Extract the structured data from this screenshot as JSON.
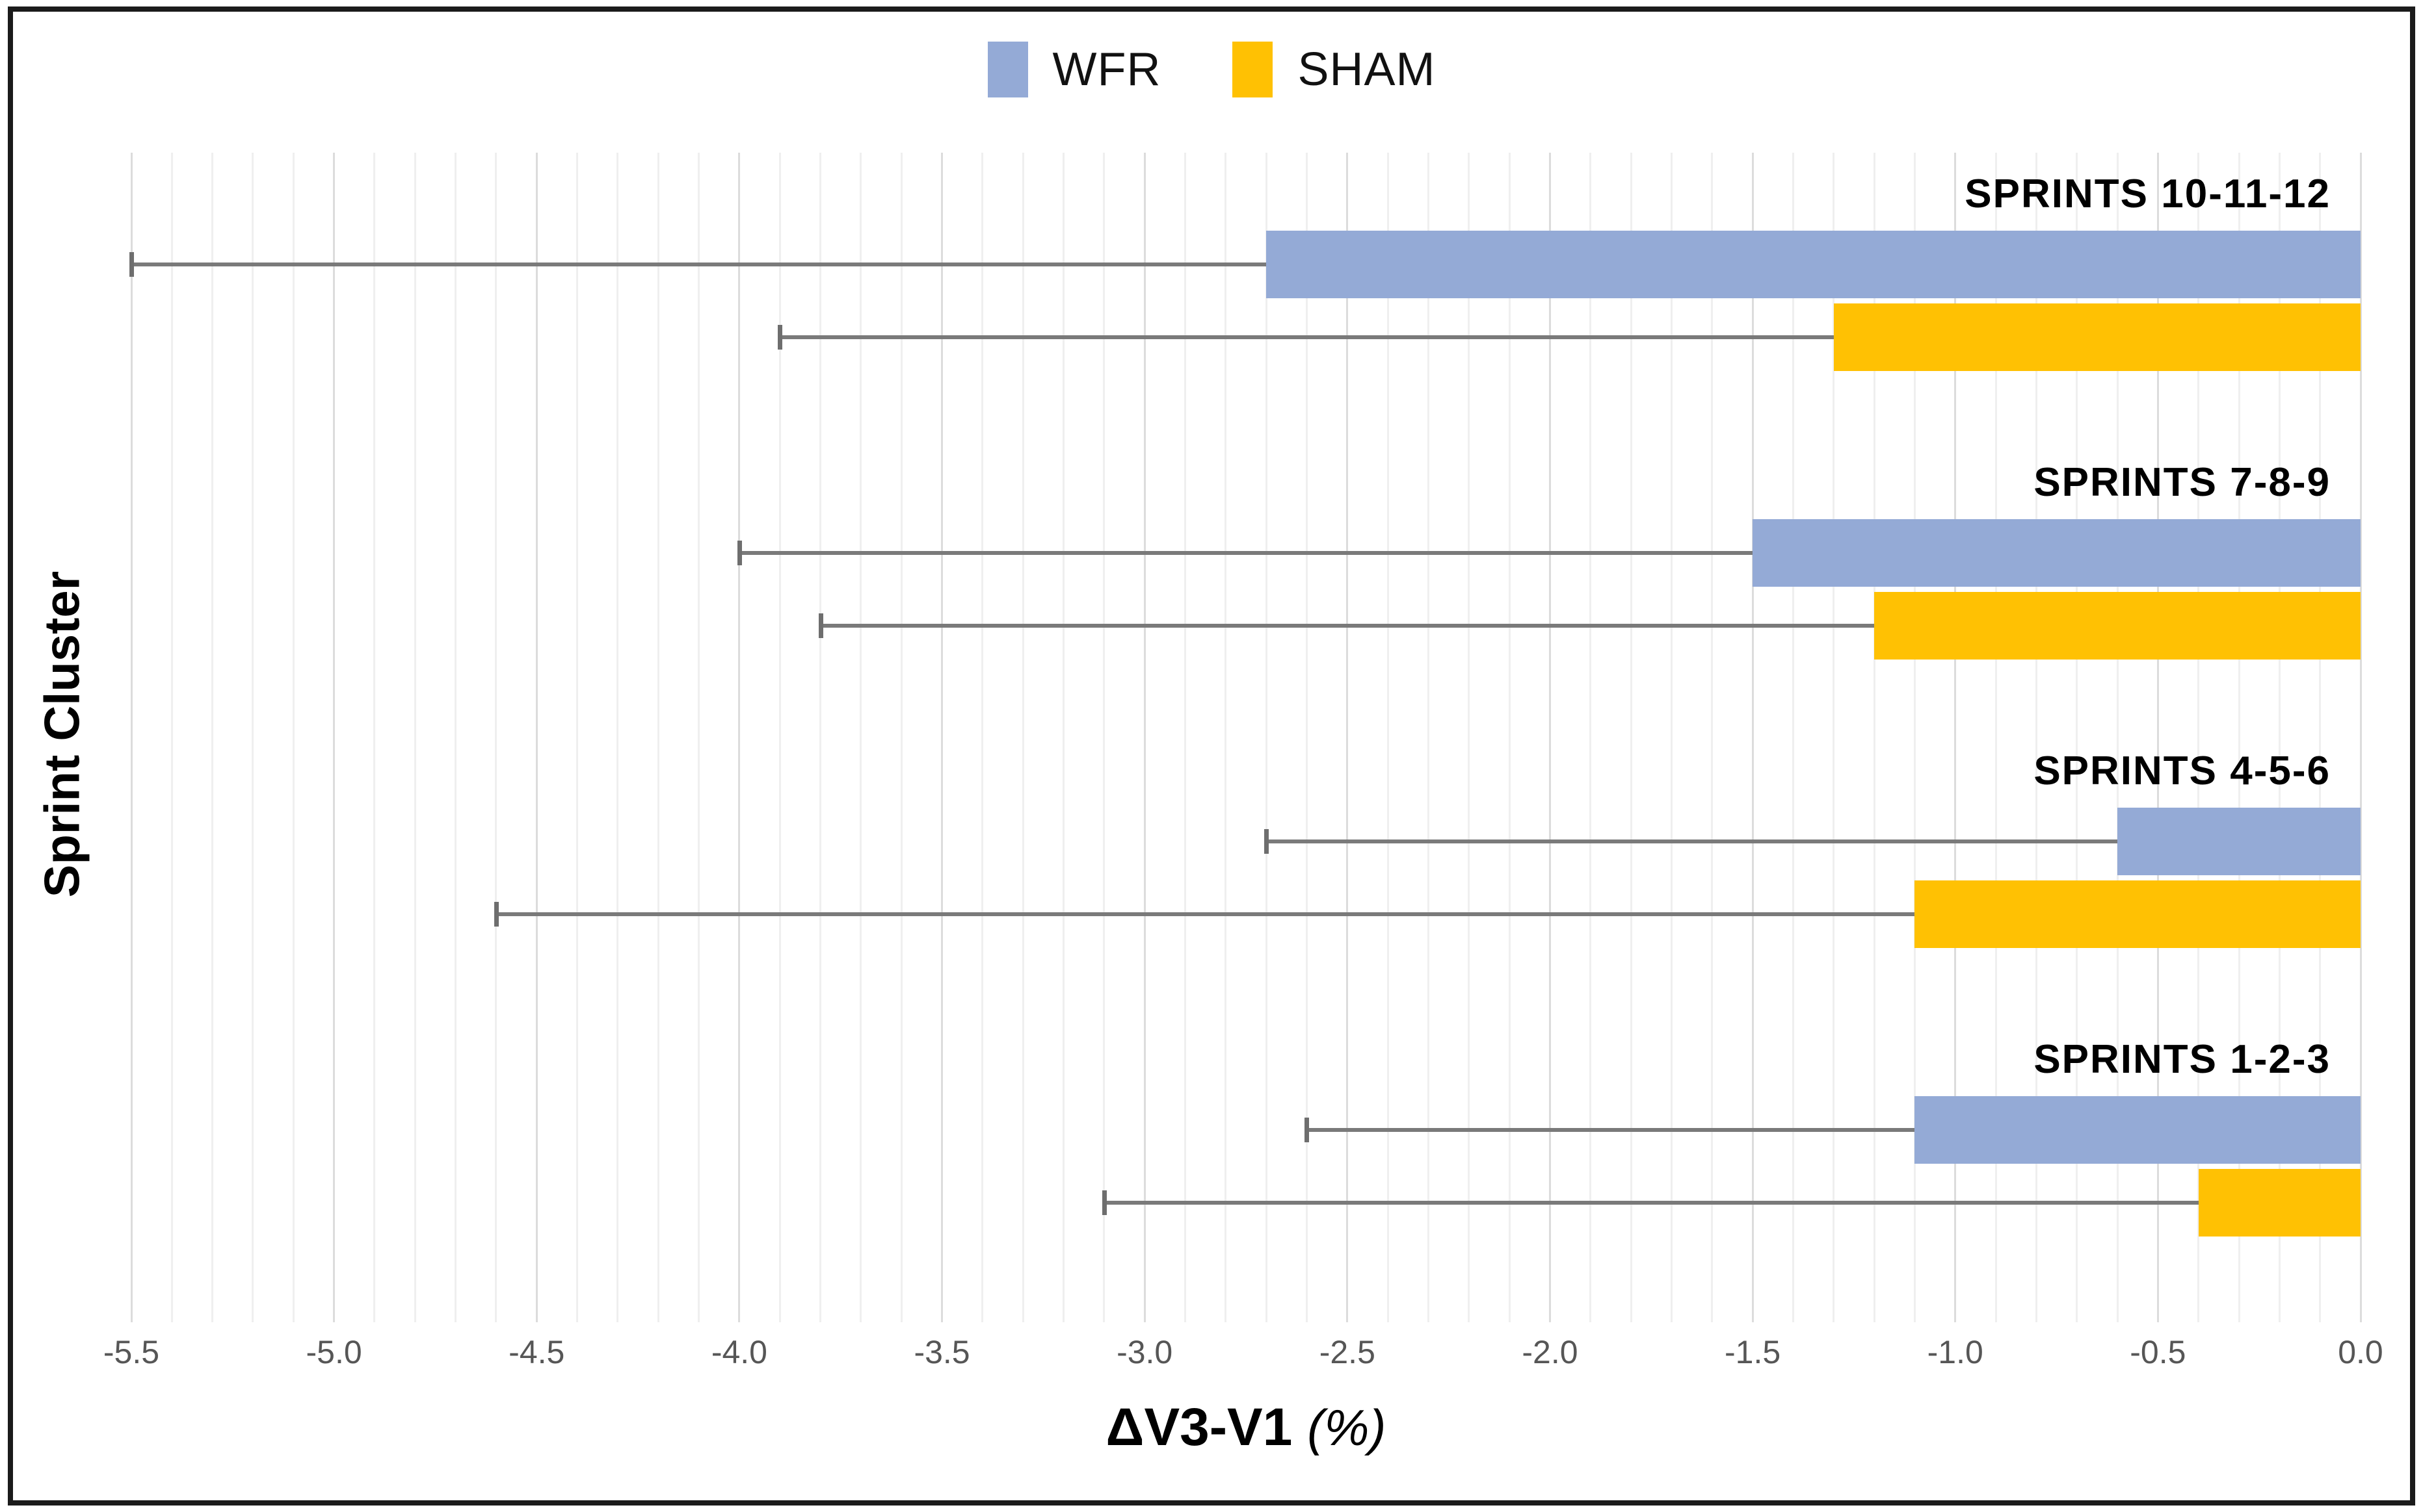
{
  "legend": {
    "series": [
      {
        "label": "WFR",
        "color": "#94AAD6"
      },
      {
        "label": "SHAM",
        "color": "#FFC103"
      }
    ]
  },
  "axes": {
    "x_title_main": "ΔV3-V1",
    "x_title_unit": "(%)",
    "y_title": "Sprint Cluster",
    "tick_labels": [
      "-5.5",
      "-5.0",
      "-4.5",
      "-4.0",
      "-3.5",
      "-3.0",
      "-2.5",
      "-2.0",
      "-1.5",
      "-1.0",
      "-0.5",
      "0.0"
    ]
  },
  "chart_data": {
    "type": "bar",
    "orientation": "horizontal",
    "xlabel": "ΔV3-V1 (%)",
    "ylabel": "Sprint Cluster",
    "xlim": [
      -5.5,
      0.0
    ],
    "xtick_step": 0.5,
    "minor_grid_step": 0.1,
    "grid": true,
    "legend_position": "top-center",
    "categories": [
      "SPRINTS 10-11-12",
      "SPRINTS 7-8-9",
      "SPRINTS 4-5-6",
      "SPRINTS 1-2-3"
    ],
    "series": [
      {
        "name": "WFR",
        "color": "#94AAD6",
        "values": [
          -2.7,
          -1.5,
          -0.6,
          -1.1
        ],
        "error_whisker_to": [
          -5.5,
          -4.0,
          -2.7,
          -2.6
        ],
        "error_magnitude": [
          2.8,
          2.5,
          2.1,
          1.5
        ]
      },
      {
        "name": "SHAM",
        "color": "#FFC103",
        "values": [
          -1.3,
          -1.2,
          -1.1,
          -0.4
        ],
        "error_whisker_to": [
          -3.9,
          -3.8,
          -4.6,
          -3.1
        ],
        "error_magnitude": [
          2.6,
          2.6,
          3.5,
          2.7
        ]
      }
    ],
    "error_bars": {
      "direction": "negative-only",
      "color": "#7a7a7a"
    },
    "colors": {
      "wfr": "#94AAD6",
      "sham": "#FFC103",
      "grid_minor": "#efefef",
      "grid_major": "#dcdcdc",
      "tick_text": "#565656",
      "frame": "#1b1b1b"
    }
  }
}
